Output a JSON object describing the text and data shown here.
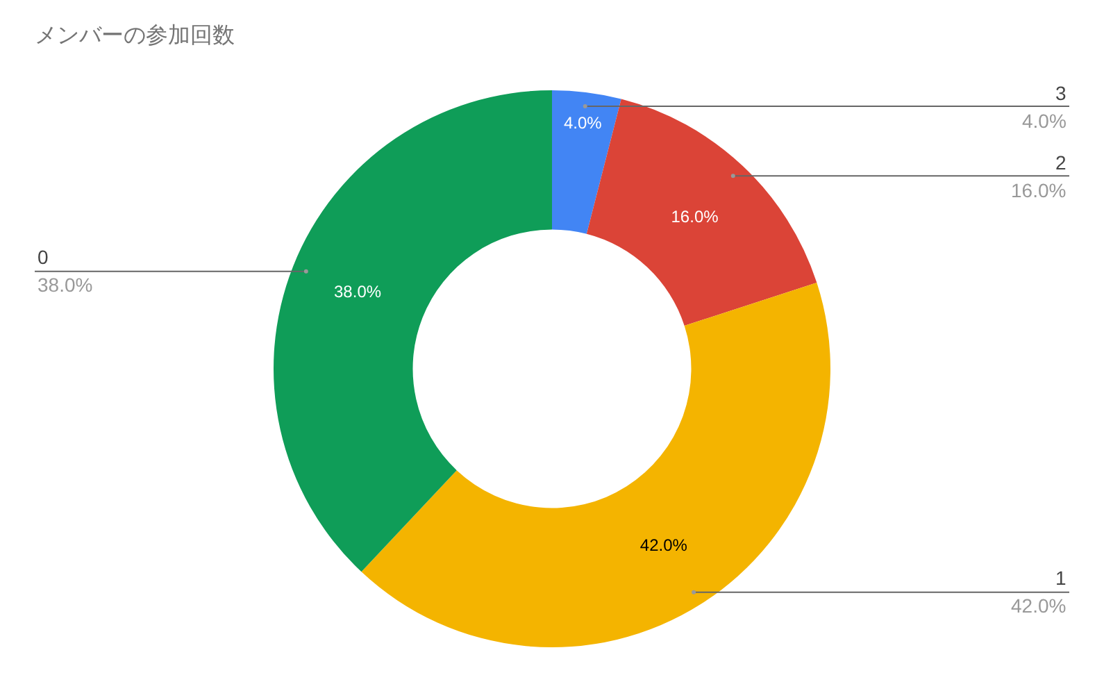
{
  "chart_data": {
    "type": "donut",
    "title": "メンバーの参加回数",
    "categories": [
      "3",
      "2",
      "1",
      "0"
    ],
    "values": [
      4.0,
      16.0,
      42.0,
      38.0
    ],
    "colors": [
      "#4285f4",
      "#db4437",
      "#f4b400",
      "#0f9d58"
    ],
    "value_labels": [
      "4.0%",
      "16.0%",
      "42.0%",
      "38.0%"
    ],
    "legend": false
  }
}
